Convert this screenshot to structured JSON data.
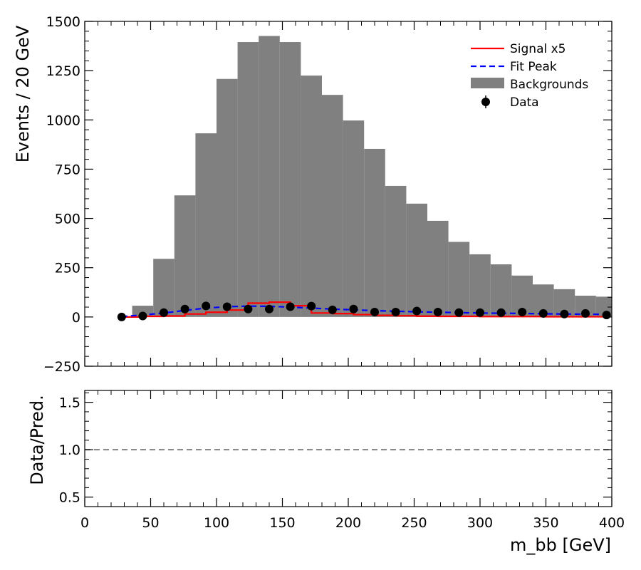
{
  "chart_data": {
    "type": "histogram",
    "xlabel": "m_bb [GeV]",
    "x_range": [
      0,
      400
    ],
    "x_ticks": [
      "0",
      "50",
      "100",
      "150",
      "200",
      "250",
      "300",
      "350",
      "400"
    ],
    "bin_width": 16,
    "main_panel": {
      "ylabel": "Events / 20 GeV",
      "ylim": [
        -250,
        1500
      ],
      "y_ticks": [
        "−250",
        "0",
        "250",
        "500",
        "750",
        "1000",
        "1250",
        "1500"
      ],
      "legend": {
        "position": "top-right",
        "entries": [
          "Signal x5",
          "Fit Peak",
          "Backgrounds",
          "Data"
        ]
      },
      "background": {
        "name": "Backgrounds",
        "color": "#808080",
        "bin_edges": [
          36,
          52,
          68,
          84,
          100,
          116,
          132,
          148,
          164,
          180,
          196,
          212,
          228,
          244,
          260,
          276,
          292,
          308,
          324,
          340,
          356,
          372,
          388,
          404
        ],
        "values": [
          57,
          295,
          617,
          932,
          1208,
          1395,
          1426,
          1395,
          1225,
          1127,
          997,
          853,
          665,
          575,
          488,
          381,
          318,
          267,
          210,
          165,
          141,
          108,
          103
        ]
      },
      "signal": {
        "name": "Signal x5",
        "color": "#ff0000",
        "bin_edges": [
          28,
          44,
          60,
          76,
          92,
          108,
          124,
          140,
          156,
          172,
          188,
          204,
          220,
          236,
          252,
          268,
          284,
          300,
          316,
          332,
          348,
          364,
          380,
          396
        ],
        "values": [
          0,
          3,
          5,
          15,
          24,
          35,
          70,
          75,
          57,
          20,
          17,
          12,
          8,
          6,
          4,
          3,
          3,
          2,
          2,
          2,
          1,
          1,
          1
        ]
      },
      "fit_peak": {
        "name": "Fit Peak",
        "color": "#0000ff",
        "x": [
          28,
          44,
          60,
          76,
          92,
          108,
          124,
          140,
          156,
          172,
          188,
          204,
          220,
          236,
          252,
          268,
          284,
          300,
          316,
          332,
          348,
          364,
          380,
          396
        ],
        "y": [
          2,
          10,
          20,
          33,
          45,
          52,
          55,
          54,
          50,
          45,
          40,
          36,
          32,
          29,
          26,
          24,
          22,
          20,
          19,
          18,
          16,
          15,
          14,
          13
        ]
      },
      "data": {
        "name": "Data",
        "color": "#000000",
        "x": [
          28,
          44,
          60,
          76,
          92,
          108,
          124,
          140,
          156,
          172,
          188,
          204,
          220,
          236,
          252,
          268,
          284,
          300,
          316,
          332,
          348,
          364,
          380,
          396
        ],
        "y": [
          0,
          5,
          22,
          40,
          56,
          52,
          40,
          40,
          52,
          55,
          36,
          40,
          25,
          25,
          30,
          25,
          22,
          22,
          22,
          25,
          18,
          15,
          18,
          10
        ]
      }
    },
    "ratio_panel": {
      "ylabel": "Data/Pred.",
      "ylim": [
        0.4,
        1.625
      ],
      "y_ticks": [
        "0.5",
        "1.0",
        "1.5"
      ],
      "reference_line": 1.0,
      "reference_color": "#808080"
    }
  }
}
